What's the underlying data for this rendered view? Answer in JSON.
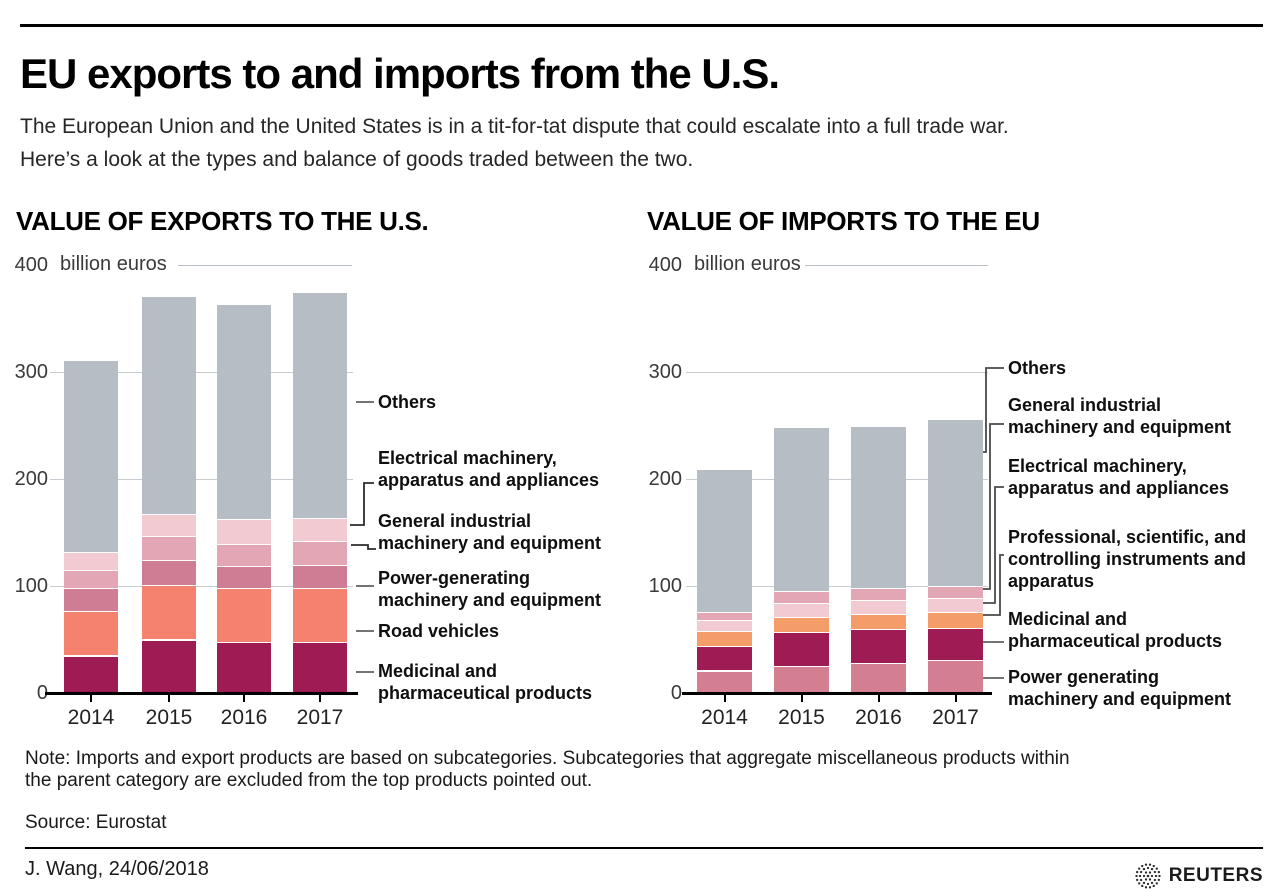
{
  "header": {
    "title": "EU exports to and imports from the U.S.",
    "subtitle_line1": "The European Union and the United States is in a tit-for-tat dispute that could escalate into a full trade war.",
    "subtitle_line2": "Here’s a look at the types and balance of goods traded between the two."
  },
  "chart_data": [
    {
      "type": "bar",
      "stacked": true,
      "title": "VALUE OF EXPORTS TO THE U.S.",
      "unit_label": "billion euros",
      "categories": [
        "2014",
        "2015",
        "2016",
        "2017"
      ],
      "yticks": [
        0,
        100,
        200,
        300,
        400
      ],
      "ylim": [
        0,
        400
      ],
      "grid": true,
      "legend_position": "right",
      "series": [
        {
          "name": "Medicinal and pharmaceutical products",
          "color": "#9f1b53",
          "values": [
            35,
            50,
            48,
            48
          ]
        },
        {
          "name": "Road vehicles",
          "color": "#f5816f",
          "values": [
            42,
            51,
            50,
            50
          ]
        },
        {
          "name": "Power-generating machinery and equipment",
          "color": "#cf7d94",
          "values": [
            21,
            23,
            21,
            22
          ]
        },
        {
          "name": "General industrial machinery and equipment",
          "color": "#e2a6b4",
          "values": [
            17,
            23,
            20,
            22
          ]
        },
        {
          "name": "Electrical machinery, apparatus and appliances",
          "color": "#f2cad1",
          "values": [
            17,
            20,
            24,
            22
          ]
        },
        {
          "name": "Others",
          "color": "#b7bdc5",
          "values": [
            179,
            204,
            201,
            211
          ]
        }
      ],
      "totals": [
        311,
        371,
        364,
        375
      ]
    },
    {
      "type": "bar",
      "stacked": true,
      "title": "VALUE OF IMPORTS TO THE EU",
      "unit_label": "billion euros",
      "categories": [
        "2014",
        "2015",
        "2016",
        "2017"
      ],
      "yticks": [
        0,
        100,
        200,
        300,
        400
      ],
      "ylim": [
        0,
        400
      ],
      "grid": true,
      "legend_position": "right",
      "series": [
        {
          "name": "Power generating machinery and equipment",
          "color": "#d47e92",
          "values": [
            21,
            25,
            28,
            31
          ]
        },
        {
          "name": "Medicinal and pharmaceutical products",
          "color": "#9f1b53",
          "values": [
            23,
            32,
            32,
            30
          ]
        },
        {
          "name": "Professional, scientific, and controlling instruments and apparatus",
          "color": "#f59d69",
          "values": [
            14,
            14,
            14,
            15
          ]
        },
        {
          "name": "Electrical machinery, apparatus and appliances",
          "color": "#f2cad1",
          "values": [
            10,
            13,
            13,
            13
          ]
        },
        {
          "name": "General industrial machinery and equipment",
          "color": "#e2a6b4",
          "values": [
            8,
            11,
            11,
            11
          ]
        },
        {
          "name": "Others",
          "color": "#b7bdc5",
          "values": [
            133,
            154,
            152,
            156
          ]
        }
      ],
      "totals": [
        209,
        249,
        250,
        256
      ]
    }
  ],
  "footer": {
    "note_line1": "Note: Imports and export products are based on subcategories. Subcategories that aggregate miscellaneous products within",
    "note_line2": "the parent category are excluded from the top products pointed out.",
    "source": "Source: Eurostat",
    "credit": "J. Wang, 24/06/2018",
    "brand": "REUTERS"
  }
}
